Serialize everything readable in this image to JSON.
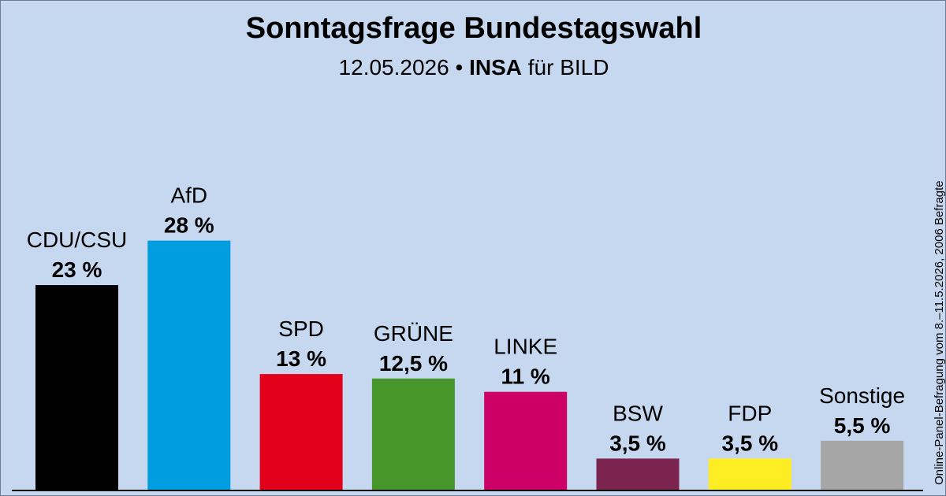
{
  "header": {
    "title": "Sonntagsfrage Bundestagswahl",
    "date": "12.05.2026",
    "separator": "•",
    "institute": "INSA",
    "client": "für BILD"
  },
  "source_note": "Online-Panel-Befragung vom 8.–11.5.2026, 2006 Befragte",
  "chart_data": {
    "type": "bar",
    "title": "Sonntagsfrage Bundestagswahl",
    "xlabel": "",
    "ylabel": "",
    "grid": false,
    "categories": [
      "CDU/CSU",
      "AfD",
      "SPD",
      "GRÜNE",
      "LINKE",
      "BSW",
      "FDP",
      "Sonstige"
    ],
    "values": [
      23,
      28,
      13,
      12.5,
      11,
      3.5,
      3.5,
      5.5
    ],
    "value_labels": [
      "23 %",
      "28 %",
      "13 %",
      "12,5 %",
      "11 %",
      "3,5 %",
      "3,5 %",
      "5,5 %"
    ],
    "colors": [
      "#000000",
      "#009ee0",
      "#e3001b",
      "#46962b",
      "#cc0066",
      "#7b2450",
      "#ffed23",
      "#a6a6a6"
    ]
  },
  "colors": {
    "background": "#c6d8f0",
    "axis": "#000000"
  }
}
